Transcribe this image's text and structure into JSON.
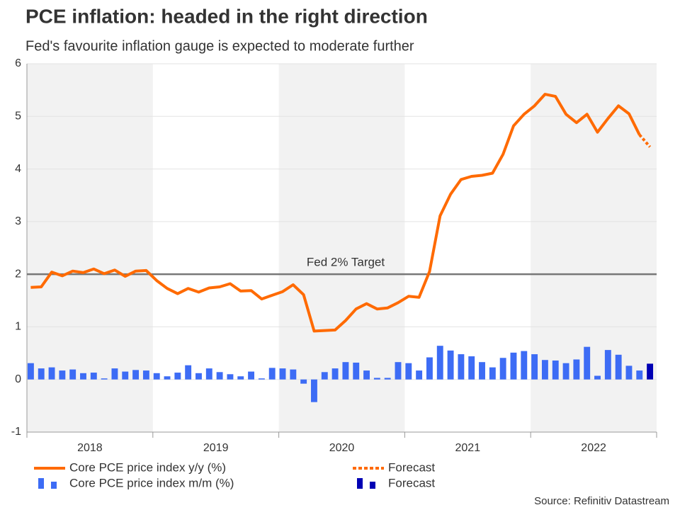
{
  "chart_data": {
    "type": "line-bar",
    "title": "PCE inflation: headed in the right direction",
    "subtitle": "Fed's favourite inflation gauge is expected to moderate further",
    "source": "Source: Refinitiv Datastream",
    "x_labels": [
      "2018",
      "2019",
      "2020",
      "2021",
      "2022"
    ],
    "ylim": [
      -1,
      6
    ],
    "yticks": [
      -1,
      0,
      1,
      2,
      3,
      4,
      5,
      6
    ],
    "grid": true,
    "target": {
      "value": 2,
      "label": "Fed 2% Target"
    },
    "series": [
      {
        "name": "Core PCE price index y/y (%)",
        "kind": "line",
        "color": "#ff6a00",
        "values": [
          1.75,
          1.76,
          2.04,
          1.97,
          2.06,
          2.03,
          2.1,
          2.01,
          2.08,
          1.96,
          2.06,
          2.07,
          1.88,
          1.73,
          1.63,
          1.73,
          1.66,
          1.74,
          1.76,
          1.82,
          1.68,
          1.69,
          1.53,
          1.6,
          1.67,
          1.8,
          1.61,
          0.92,
          0.93,
          0.94,
          1.12,
          1.34,
          1.44,
          1.34,
          1.36,
          1.46,
          1.58,
          1.56,
          2.05,
          3.11,
          3.52,
          3.8,
          3.86,
          3.88,
          3.92,
          4.28,
          4.82,
          5.04,
          5.2,
          5.42,
          5.38,
          5.04,
          4.88,
          5.04,
          4.7,
          4.96,
          5.2,
          5.05,
          4.65,
          null
        ]
      },
      {
        "name": "Forecast",
        "kind": "dotted",
        "color": "#ff6a00",
        "values": [
          null,
          null,
          null,
          null,
          null,
          null,
          null,
          null,
          null,
          null,
          null,
          null,
          null,
          null,
          null,
          null,
          null,
          null,
          null,
          null,
          null,
          null,
          null,
          null,
          null,
          null,
          null,
          null,
          null,
          null,
          null,
          null,
          null,
          null,
          null,
          null,
          null,
          null,
          null,
          null,
          null,
          null,
          null,
          null,
          null,
          null,
          null,
          null,
          null,
          null,
          null,
          null,
          null,
          null,
          null,
          null,
          null,
          null,
          4.65,
          4.42
        ]
      },
      {
        "name": "Core PCE price index m/m (%)",
        "kind": "bar",
        "color": "#3d6cf5",
        "values": [
          0.31,
          0.21,
          0.23,
          0.17,
          0.19,
          0.12,
          0.13,
          0.02,
          0.21,
          0.15,
          0.18,
          0.17,
          0.12,
          0.06,
          0.13,
          0.27,
          0.12,
          0.21,
          0.14,
          0.1,
          0.06,
          0.15,
          0.02,
          0.22,
          0.21,
          0.19,
          -0.08,
          -0.43,
          0.14,
          0.21,
          0.33,
          0.32,
          0.17,
          0.03,
          0.03,
          0.33,
          0.31,
          0.17,
          0.42,
          0.64,
          0.55,
          0.48,
          0.44,
          0.33,
          0.23,
          0.41,
          0.51,
          0.54,
          0.48,
          0.37,
          0.36,
          0.31,
          0.38,
          0.62,
          0.07,
          0.56,
          0.47,
          0.26,
          0.17,
          null
        ]
      },
      {
        "name": "Forecast",
        "kind": "bar",
        "color": "#0000b4",
        "values": [
          null,
          null,
          null,
          null,
          null,
          null,
          null,
          null,
          null,
          null,
          null,
          null,
          null,
          null,
          null,
          null,
          null,
          null,
          null,
          null,
          null,
          null,
          null,
          null,
          null,
          null,
          null,
          null,
          null,
          null,
          null,
          null,
          null,
          null,
          null,
          null,
          null,
          null,
          null,
          null,
          null,
          null,
          null,
          null,
          null,
          null,
          null,
          null,
          null,
          null,
          null,
          null,
          null,
          null,
          null,
          null,
          null,
          null,
          null,
          0.3
        ]
      }
    ]
  }
}
